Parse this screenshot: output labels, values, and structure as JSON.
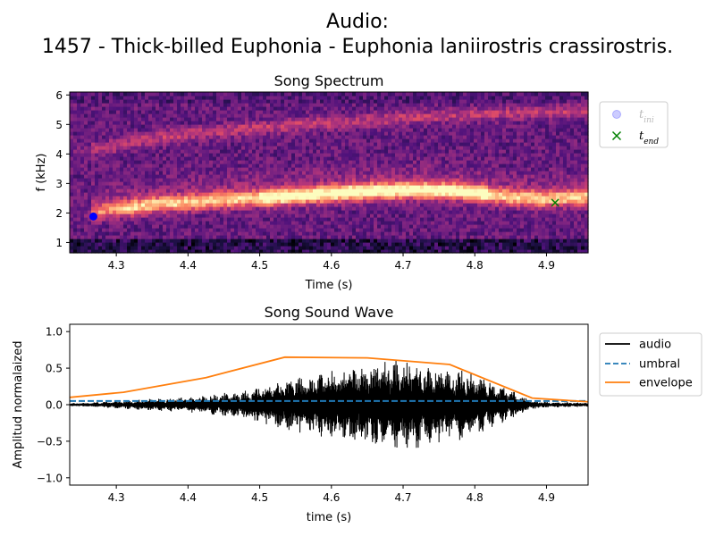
{
  "figure": {
    "title_line1": "Audio:",
    "title_line2": "1457 - Thick-billed Euphonia - Euphonia laniirostris crassirostris."
  },
  "chart_data": [
    {
      "type": "heatmap",
      "title": "Song Spectrum",
      "xlabel": "Time (s)",
      "ylabel": "f (kHz)",
      "xlim": [
        4.235,
        4.958
      ],
      "ylim": [
        0.65,
        6.1
      ],
      "xticks": [
        "4.3",
        "4.4",
        "4.5",
        "4.6",
        "4.7",
        "4.8",
        "4.9"
      ],
      "yticks": [
        "1",
        "2",
        "3",
        "4",
        "5",
        "6"
      ],
      "colormap": "magma",
      "song_contours": [
        {
          "name": "fundamental",
          "points": [
            [
              4.27,
              2.05
            ],
            [
              4.35,
              2.3
            ],
            [
              4.45,
              2.45
            ],
            [
              4.55,
              2.6
            ],
            [
              4.65,
              2.75
            ],
            [
              4.72,
              2.8
            ],
            [
              4.78,
              2.75
            ],
            [
              4.85,
              2.55
            ],
            [
              4.9,
              2.5
            ],
            [
              4.958,
              2.55
            ]
          ]
        },
        {
          "name": "harmonic",
          "points": [
            [
              4.28,
              4.2
            ],
            [
              4.35,
              4.55
            ],
            [
              4.45,
              4.8
            ],
            [
              4.55,
              5.0
            ],
            [
              4.65,
              5.15
            ],
            [
              4.75,
              5.3
            ],
            [
              4.85,
              5.4
            ],
            [
              4.958,
              5.5
            ]
          ]
        }
      ],
      "markers": [
        {
          "label": "t_ini",
          "time": 4.268,
          "freq": 1.88,
          "color": "#0000ff",
          "shape": "circle"
        },
        {
          "label": "t_end",
          "time": 4.912,
          "freq": 2.35,
          "color": "#008000",
          "shape": "x"
        }
      ],
      "legend": {
        "placement": "upper-right-outside",
        "entries": [
          "t",
          "t"
        ],
        "subscripts": [
          "ini",
          "end"
        ]
      }
    },
    {
      "type": "line",
      "title": "Song Sound Wave",
      "xlabel": "time (s)",
      "ylabel": "Amplitud normalaized",
      "xlim": [
        4.235,
        4.958
      ],
      "ylim": [
        -1.1,
        1.1
      ],
      "xticks": [
        "4.3",
        "4.4",
        "4.5",
        "4.6",
        "4.7",
        "4.8",
        "4.9"
      ],
      "yticks": [
        "−1.0",
        "−0.5",
        "0.0",
        "0.5",
        "1.0"
      ],
      "series": [
        {
          "name": "audio",
          "color": "#000000",
          "style": "solid",
          "envelope_points": [
            [
              4.235,
              0.02
            ],
            [
              4.26,
              0.03
            ],
            [
              4.3,
              0.05
            ],
            [
              4.35,
              0.08
            ],
            [
              4.42,
              0.12
            ],
            [
              4.48,
              0.2
            ],
            [
              4.52,
              0.3
            ],
            [
              4.56,
              0.4
            ],
            [
              4.6,
              0.48
            ],
            [
              4.64,
              0.55
            ],
            [
              4.66,
              0.62
            ],
            [
              4.69,
              0.62
            ],
            [
              4.72,
              0.6
            ],
            [
              4.75,
              0.52
            ],
            [
              4.78,
              0.5
            ],
            [
              4.8,
              0.45
            ],
            [
              4.83,
              0.3
            ],
            [
              4.86,
              0.15
            ],
            [
              4.88,
              0.06
            ],
            [
              4.9,
              0.04
            ],
            [
              4.958,
              0.03
            ]
          ]
        },
        {
          "name": "umbral",
          "color": "#1f77b4",
          "style": "dashed",
          "x": [
            4.235,
            4.958
          ],
          "y": [
            0.05,
            0.05
          ]
        },
        {
          "name": "envelope",
          "color": "#ff7f0e",
          "style": "solid",
          "x": [
            4.235,
            4.31,
            4.425,
            4.535,
            4.65,
            4.765,
            4.88,
            4.958
          ],
          "y": [
            0.1,
            0.17,
            0.37,
            0.65,
            0.64,
            0.55,
            0.09,
            0.04
          ]
        }
      ],
      "legend": {
        "placement": "upper-right-outside",
        "entries": [
          "audio",
          "umbral",
          "envelope"
        ]
      }
    }
  ]
}
